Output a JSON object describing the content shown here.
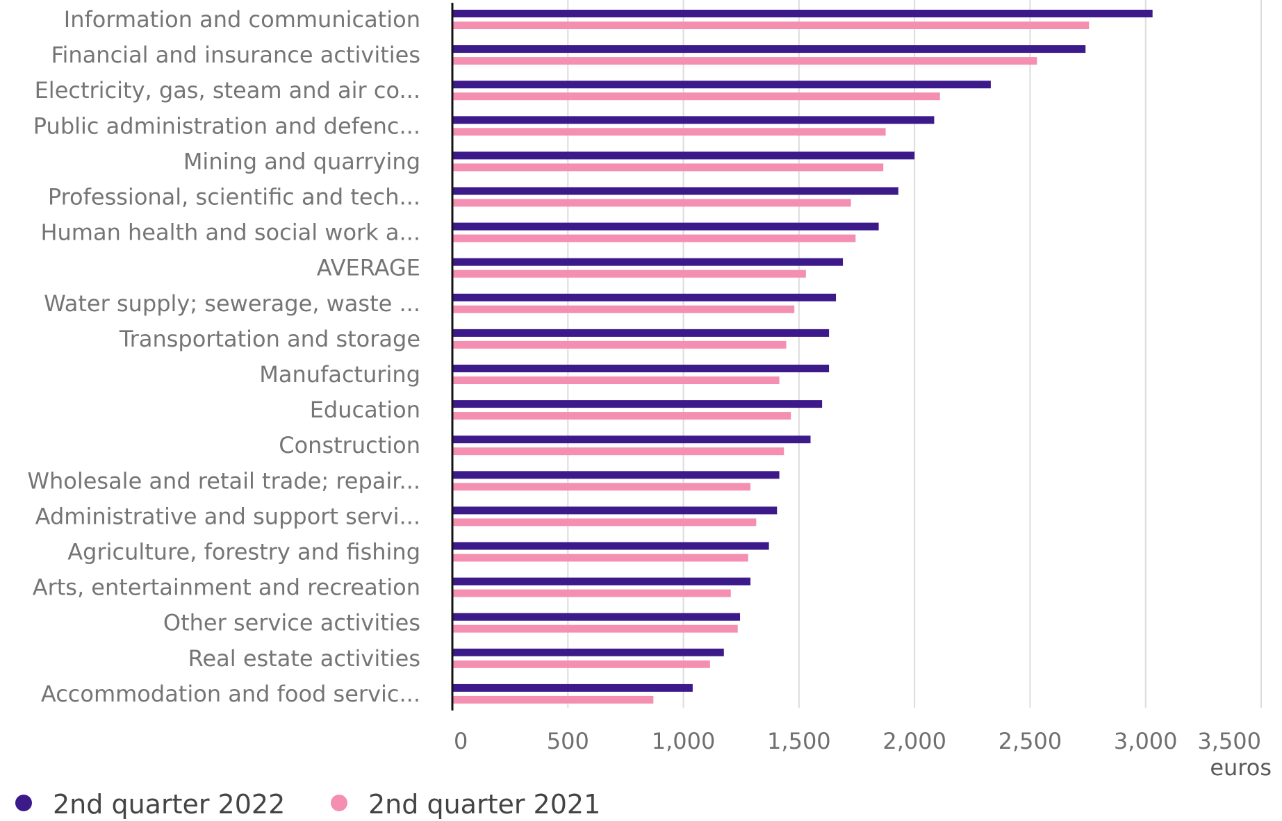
{
  "chart_data": {
    "type": "bar",
    "orientation": "horizontal",
    "categories": [
      "Information and communication",
      "Financial and insurance activities",
      "Electricity, gas, steam and air co...",
      "Public administration and defenc...",
      "Mining and quarrying",
      "Professional, scientific and tech...",
      "Human health and social work a...",
      "AVERAGE",
      "Water supply; sewerage, waste ...",
      "Transportation and storage",
      "Manufacturing",
      "Education",
      "Construction",
      "Wholesale and retail trade; repair...",
      "Administrative and support servi...",
      "Agriculture, forestry and fishing",
      "Arts, entertainment and recreation",
      "Other service activities",
      "Real estate activities",
      "Accommodation and food servic..."
    ],
    "series": [
      {
        "name": "2nd quarter 2022",
        "color": "#3d1a8a",
        "values": [
          3030,
          2740,
          2330,
          2085,
          2000,
          1930,
          1845,
          1690,
          1660,
          1630,
          1630,
          1600,
          1550,
          1415,
          1405,
          1370,
          1290,
          1245,
          1175,
          1040
        ]
      },
      {
        "name": "2nd quarter 2021",
        "color": "#f48fb1",
        "values": [
          2755,
          2530,
          2110,
          1875,
          1865,
          1725,
          1745,
          1530,
          1480,
          1445,
          1415,
          1465,
          1435,
          1290,
          1315,
          1280,
          1205,
          1235,
          1115,
          870
        ]
      }
    ],
    "xlim": [
      0,
      3500
    ],
    "xticks": [
      0,
      500,
      1000,
      1500,
      2000,
      2500,
      3000,
      3500
    ],
    "xtick_labels": [
      "0",
      "500",
      "1,000",
      "1,500",
      "2,000",
      "2,500",
      "3,000",
      "3,500"
    ],
    "xunit": "euros",
    "grid": "vertical",
    "legend_position": "bottom-left"
  }
}
